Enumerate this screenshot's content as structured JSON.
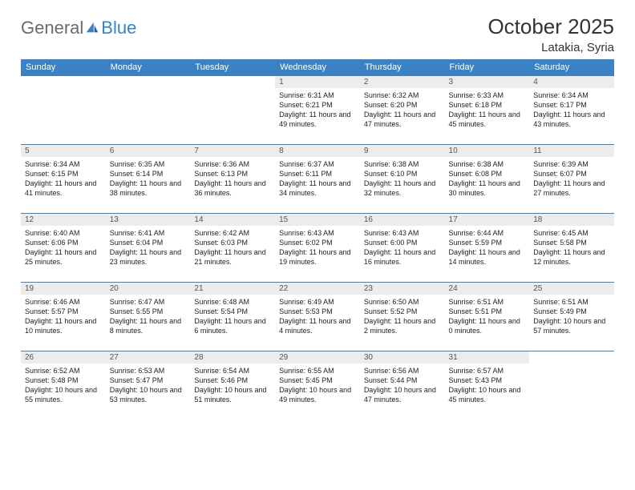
{
  "logo": {
    "general": "General",
    "blue": "Blue"
  },
  "title": "October 2025",
  "subtitle": "Latakia, Syria",
  "colors": {
    "header_bg": "#3b82c4",
    "header_text": "#ffffff",
    "daynum_bg": "#ececec",
    "daynum_text": "#555555",
    "row_border": "#3b82c4",
    "body_text": "#222222",
    "logo_general": "#6b6b6b",
    "logo_blue": "#3b82c4",
    "background": "#ffffff"
  },
  "weekdays": [
    "Sunday",
    "Monday",
    "Tuesday",
    "Wednesday",
    "Thursday",
    "Friday",
    "Saturday"
  ],
  "weeks": [
    [
      null,
      null,
      null,
      {
        "d": "1",
        "sr": "6:31 AM",
        "ss": "6:21 PM",
        "dl": "11 hours and 49 minutes."
      },
      {
        "d": "2",
        "sr": "6:32 AM",
        "ss": "6:20 PM",
        "dl": "11 hours and 47 minutes."
      },
      {
        "d": "3",
        "sr": "6:33 AM",
        "ss": "6:18 PM",
        "dl": "11 hours and 45 minutes."
      },
      {
        "d": "4",
        "sr": "6:34 AM",
        "ss": "6:17 PM",
        "dl": "11 hours and 43 minutes."
      }
    ],
    [
      {
        "d": "5",
        "sr": "6:34 AM",
        "ss": "6:15 PM",
        "dl": "11 hours and 41 minutes."
      },
      {
        "d": "6",
        "sr": "6:35 AM",
        "ss": "6:14 PM",
        "dl": "11 hours and 38 minutes."
      },
      {
        "d": "7",
        "sr": "6:36 AM",
        "ss": "6:13 PM",
        "dl": "11 hours and 36 minutes."
      },
      {
        "d": "8",
        "sr": "6:37 AM",
        "ss": "6:11 PM",
        "dl": "11 hours and 34 minutes."
      },
      {
        "d": "9",
        "sr": "6:38 AM",
        "ss": "6:10 PM",
        "dl": "11 hours and 32 minutes."
      },
      {
        "d": "10",
        "sr": "6:38 AM",
        "ss": "6:08 PM",
        "dl": "11 hours and 30 minutes."
      },
      {
        "d": "11",
        "sr": "6:39 AM",
        "ss": "6:07 PM",
        "dl": "11 hours and 27 minutes."
      }
    ],
    [
      {
        "d": "12",
        "sr": "6:40 AM",
        "ss": "6:06 PM",
        "dl": "11 hours and 25 minutes."
      },
      {
        "d": "13",
        "sr": "6:41 AM",
        "ss": "6:04 PM",
        "dl": "11 hours and 23 minutes."
      },
      {
        "d": "14",
        "sr": "6:42 AM",
        "ss": "6:03 PM",
        "dl": "11 hours and 21 minutes."
      },
      {
        "d": "15",
        "sr": "6:43 AM",
        "ss": "6:02 PM",
        "dl": "11 hours and 19 minutes."
      },
      {
        "d": "16",
        "sr": "6:43 AM",
        "ss": "6:00 PM",
        "dl": "11 hours and 16 minutes."
      },
      {
        "d": "17",
        "sr": "6:44 AM",
        "ss": "5:59 PM",
        "dl": "11 hours and 14 minutes."
      },
      {
        "d": "18",
        "sr": "6:45 AM",
        "ss": "5:58 PM",
        "dl": "11 hours and 12 minutes."
      }
    ],
    [
      {
        "d": "19",
        "sr": "6:46 AM",
        "ss": "5:57 PM",
        "dl": "11 hours and 10 minutes."
      },
      {
        "d": "20",
        "sr": "6:47 AM",
        "ss": "5:55 PM",
        "dl": "11 hours and 8 minutes."
      },
      {
        "d": "21",
        "sr": "6:48 AM",
        "ss": "5:54 PM",
        "dl": "11 hours and 6 minutes."
      },
      {
        "d": "22",
        "sr": "6:49 AM",
        "ss": "5:53 PM",
        "dl": "11 hours and 4 minutes."
      },
      {
        "d": "23",
        "sr": "6:50 AM",
        "ss": "5:52 PM",
        "dl": "11 hours and 2 minutes."
      },
      {
        "d": "24",
        "sr": "6:51 AM",
        "ss": "5:51 PM",
        "dl": "11 hours and 0 minutes."
      },
      {
        "d": "25",
        "sr": "6:51 AM",
        "ss": "5:49 PM",
        "dl": "10 hours and 57 minutes."
      }
    ],
    [
      {
        "d": "26",
        "sr": "6:52 AM",
        "ss": "5:48 PM",
        "dl": "10 hours and 55 minutes."
      },
      {
        "d": "27",
        "sr": "6:53 AM",
        "ss": "5:47 PM",
        "dl": "10 hours and 53 minutes."
      },
      {
        "d": "28",
        "sr": "6:54 AM",
        "ss": "5:46 PM",
        "dl": "10 hours and 51 minutes."
      },
      {
        "d": "29",
        "sr": "6:55 AM",
        "ss": "5:45 PM",
        "dl": "10 hours and 49 minutes."
      },
      {
        "d": "30",
        "sr": "6:56 AM",
        "ss": "5:44 PM",
        "dl": "10 hours and 47 minutes."
      },
      {
        "d": "31",
        "sr": "6:57 AM",
        "ss": "5:43 PM",
        "dl": "10 hours and 45 minutes."
      },
      null
    ]
  ],
  "labels": {
    "sunrise": "Sunrise:",
    "sunset": "Sunset:",
    "daylight": "Daylight:"
  }
}
